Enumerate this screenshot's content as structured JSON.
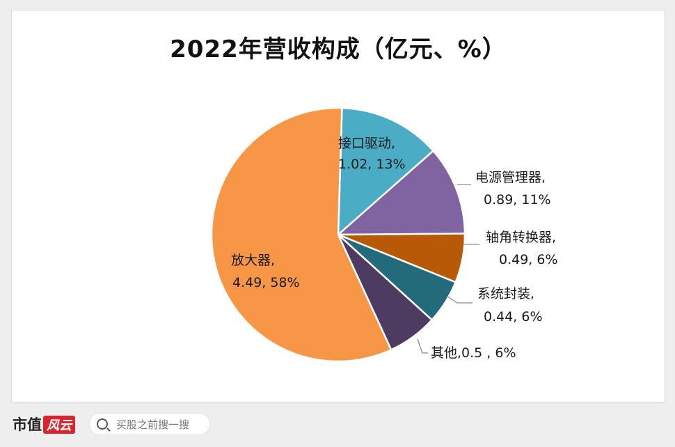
{
  "chart_data": {
    "type": "pie",
    "title": "2022年营收构成（亿元、%）",
    "slices": [
      {
        "name": "接口驱动",
        "value": 1.02,
        "percent": 13,
        "label": "1.02, 13%",
        "color": "#4bacc6"
      },
      {
        "name": "电源管理器",
        "value": 0.89,
        "percent": 11,
        "label": "0.89, 11%",
        "color": "#8064a2"
      },
      {
        "name": "轴角转换器",
        "value": 0.49,
        "percent": 6,
        "label": "0.49, 6%",
        "color": "#b85907"
      },
      {
        "name": "系统封装",
        "value": 0.44,
        "percent": 6,
        "label": "0.44, 6%",
        "color": "#236a7b"
      },
      {
        "name": "其他",
        "value": 0.5,
        "percent": 6,
        "label": "0.5 , 6%",
        "color": "#4d3b62"
      },
      {
        "name": "放大器",
        "value": 4.49,
        "percent": 58,
        "label": "4.49, 58%",
        "color": "#f79646"
      }
    ]
  },
  "footer": {
    "brand": "市值",
    "brand_mark": "风云",
    "search_placeholder": "买股之前搜一搜"
  }
}
